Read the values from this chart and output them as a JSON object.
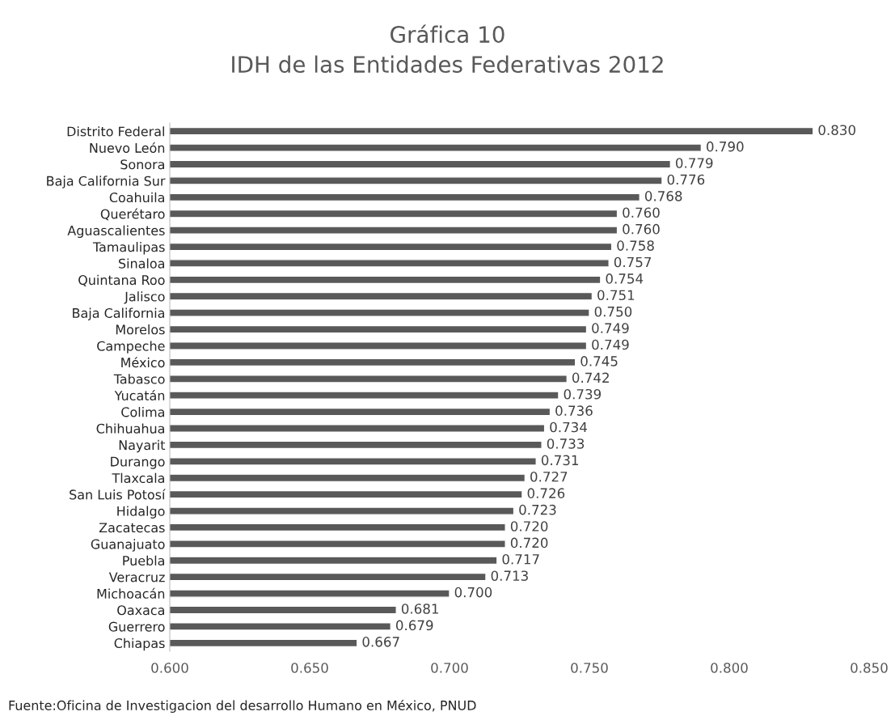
{
  "chart_data": {
    "type": "bar",
    "orientation": "horizontal",
    "title": "Gráfica 10",
    "subtitle": "IDH de las Entidades Federativas 2012",
    "categories": [
      "Distrito Federal",
      "Nuevo León",
      "Sonora",
      "Baja California Sur",
      "Coahuila",
      "Querétaro",
      "Aguascalientes",
      "Tamaulipas",
      "Sinaloa",
      "Quintana Roo",
      "Jalisco",
      "Baja California",
      "Morelos",
      "Campeche",
      "México",
      "Tabasco",
      "Yucatán",
      "Colima",
      "Chihuahua",
      "Nayarit",
      "Durango",
      "Tlaxcala",
      "San Luis Potosí",
      "Hidalgo",
      "Zacatecas",
      "Guanajuato",
      "Puebla",
      "Veracruz",
      "Michoacán",
      "Oaxaca",
      "Guerrero",
      "Chiapas"
    ],
    "values": [
      0.83,
      0.79,
      0.779,
      0.776,
      0.768,
      0.76,
      0.76,
      0.758,
      0.757,
      0.754,
      0.751,
      0.75,
      0.749,
      0.749,
      0.745,
      0.742,
      0.739,
      0.736,
      0.734,
      0.733,
      0.731,
      0.727,
      0.726,
      0.723,
      0.72,
      0.72,
      0.717,
      0.713,
      0.7,
      0.681,
      0.679,
      0.667
    ],
    "value_labels": [
      "0.830",
      "0.790",
      "0.779",
      "0.776",
      "0.768",
      "0.760",
      "0.760",
      "0.758",
      "0.757",
      "0.754",
      "0.751",
      "0.750",
      "0.749",
      "0.749",
      "0.745",
      "0.742",
      "0.739",
      "0.736",
      "0.734",
      "0.733",
      "0.731",
      "0.727",
      "0.726",
      "0.723",
      "0.720",
      "0.720",
      "0.717",
      "0.713",
      "0.700",
      "0.681",
      "0.679",
      "0.667"
    ],
    "color": "#595959",
    "xlim": [
      0.6,
      0.85
    ],
    "xticks": [
      {
        "value": 0.6,
        "label": "0.600"
      },
      {
        "value": 0.65,
        "label": "0.650"
      },
      {
        "value": 0.7,
        "label": "0.700"
      },
      {
        "value": 0.75,
        "label": "0.750"
      },
      {
        "value": 0.8,
        "label": "0.800"
      },
      {
        "value": 0.85,
        "label": "0.850"
      }
    ],
    "grid": false,
    "legend": false,
    "annotations": [
      "Fuente:Oficina de Investigacion del desarrollo Humano en México, PNUD"
    ]
  }
}
